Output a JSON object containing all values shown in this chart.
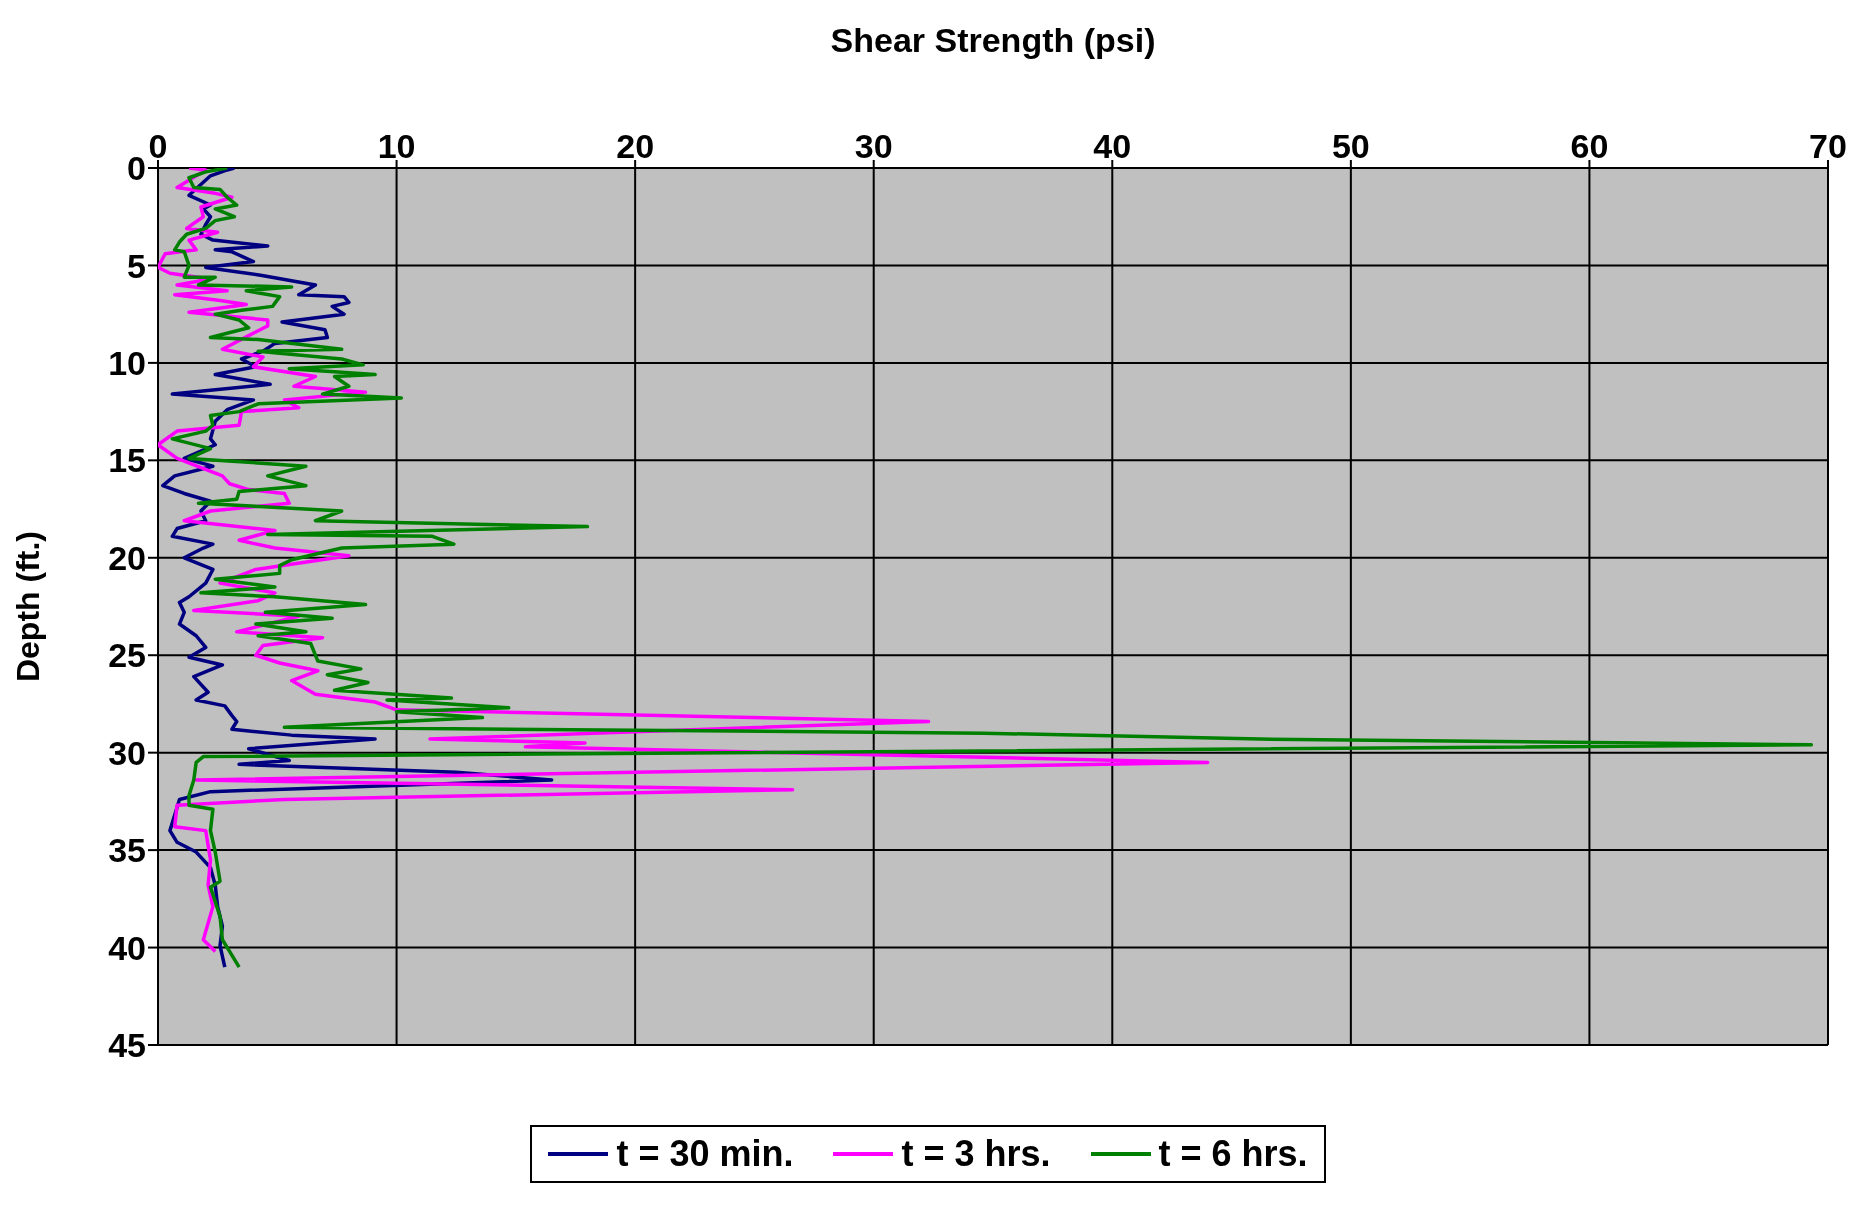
{
  "chart_data": {
    "type": "line",
    "xlabel": "Shear Strength (psi)",
    "ylabel": "Depth (ft.)",
    "xlim": [
      0,
      70
    ],
    "xticks": [
      0,
      10,
      20,
      30,
      40,
      50,
      60,
      70
    ],
    "ylim": [
      45,
      0
    ],
    "yticks": [
      0,
      5,
      10,
      15,
      20,
      25,
      30,
      35,
      40,
      45
    ],
    "grid": true,
    "legend": "bottom",
    "marker": "none",
    "line_style": "solid",
    "series": [
      {
        "name": "t = 30 min.",
        "color": "#000080",
        "x": [
          3.2,
          2.9,
          2.2,
          1.3,
          2.2,
          1.9,
          2.2,
          2.0,
          1.8,
          2.3,
          4.6,
          2.4,
          3.1,
          4.0,
          2.0,
          4.3,
          6.6,
          5.9,
          7.8,
          8.0,
          7.3,
          7.8,
          5.2,
          7.0,
          7.1,
          4.9,
          4.4,
          3.5,
          4.1,
          2.4,
          4.7,
          0.6,
          4.0,
          2.9,
          2.4,
          2.2,
          2.4,
          1.1,
          2.3,
          0.7,
          0.2,
          1.1,
          2.2,
          1.8,
          2.0,
          0.8,
          0.6,
          2.3,
          1.9,
          1.1,
          2.3,
          2.0,
          1.3,
          0.9,
          1.1,
          0.9,
          1.6,
          2.0,
          1.3,
          2.7,
          1.5,
          2.1,
          1.6,
          2.8,
          3.1,
          3.3,
          3.1,
          5.6,
          9.1,
          3.8,
          5.5,
          3.4,
          12.5,
          16.5,
          2.2,
          0.9,
          0.5,
          0.8,
          1.6,
          2.2,
          2.4,
          2.5,
          2.7,
          2.6,
          2.8
        ],
        "values": [
          0,
          0.1,
          0.4,
          1.4,
          1.9,
          2.1,
          2.5,
          2.9,
          3.4,
          3.7,
          4.0,
          4.2,
          4.3,
          4.8,
          5.1,
          5.5,
          6.0,
          6.5,
          6.6,
          6.9,
          7.1,
          7.5,
          7.9,
          8.3,
          8.7,
          9.0,
          9.4,
          9.8,
          10.2,
          10.6,
          11.1,
          11.6,
          11.9,
          12.4,
          13.0,
          13.9,
          14.2,
          14.9,
          15.3,
          15.8,
          16.3,
          16.7,
          17.1,
          17.6,
          18.1,
          18.5,
          18.9,
          19.3,
          19.5,
          20.0,
          20.6,
          21.3,
          22.0,
          22.3,
          22.8,
          23.4,
          24.0,
          24.6,
          25.1,
          25.5,
          26.1,
          26.9,
          27.3,
          27.6,
          28.1,
          28.4,
          28.8,
          29.1,
          29.3,
          29.8,
          30.4,
          30.6,
          31.0,
          31.4,
          32.0,
          32.4,
          34.0,
          34.6,
          35.1,
          35.9,
          36.8,
          37.9,
          38.9,
          39.9,
          41.0
        ]
      },
      {
        "name": "t = 3 hrs.",
        "color": "#ff00ff",
        "x": [
          1.3,
          2.0,
          0.8,
          2.4,
          3.1,
          1.8,
          1.9,
          1.2,
          2.5,
          1.3,
          1.6,
          0.3,
          0.0,
          0.5,
          2.2,
          0.8,
          2.9,
          0.7,
          2.6,
          3.7,
          1.3,
          4.6,
          4.6,
          3.8,
          2.7,
          4.4,
          4.0,
          6.6,
          5.7,
          8.7,
          5.3,
          5.9,
          3.5,
          3.4,
          0.8,
          0.0,
          0.8,
          2.7,
          3.0,
          3.8,
          5.3,
          5.5,
          2.2,
          1.1,
          4.9,
          3.4,
          4.9,
          8.0,
          4.1,
          2.6,
          4.9,
          4.2,
          1.5,
          5.9,
          3.3,
          6.9,
          4.4,
          4.1,
          5.1,
          6.7,
          5.6,
          6.6,
          9.1,
          10.0,
          32.3,
          11.4,
          17.9,
          15.4,
          44.0,
          1.6,
          26.6,
          5.3,
          0.8,
          0.7,
          2.0,
          2.2,
          2.1,
          2.3,
          1.9,
          2.4
        ],
        "values": [
          0,
          0.1,
          1.0,
          1.3,
          1.5,
          2.0,
          2.5,
          3.1,
          3.3,
          3.7,
          4.2,
          4.4,
          5.1,
          5.4,
          5.7,
          6.0,
          6.3,
          6.5,
          6.8,
          7.0,
          7.4,
          7.8,
          8.1,
          8.6,
          9.3,
          9.7,
          10.2,
          10.7,
          11.2,
          11.5,
          11.9,
          12.3,
          12.5,
          13.2,
          13.5,
          14.2,
          14.9,
          15.8,
          16.2,
          16.5,
          16.7,
          17.2,
          17.6,
          18.1,
          18.6,
          19.1,
          19.5,
          19.9,
          20.6,
          21.3,
          21.8,
          22.2,
          22.7,
          23.0,
          23.8,
          24.1,
          24.5,
          25.0,
          25.4,
          25.8,
          26.3,
          27.0,
          27.4,
          27.8,
          28.4,
          29.3,
          29.5,
          29.7,
          30.5,
          31.4,
          31.9,
          32.4,
          32.7,
          33.8,
          34.0,
          35.5,
          36.8,
          37.9,
          39.6,
          40.2
        ]
      },
      {
        "name": "t = 6 hrs.",
        "color": "#008000",
        "x": [
          2.9,
          2.0,
          1.3,
          1.5,
          2.6,
          2.9,
          3.3,
          2.4,
          3.2,
          2.4,
          2.0,
          1.2,
          0.9,
          0.7,
          1.1,
          1.3,
          1.1,
          2.4,
          1.7,
          5.6,
          3.7,
          5.1,
          4.8,
          3.5,
          2.4,
          3.4,
          3.8,
          2.2,
          4.2,
          7.7,
          4.2,
          7.7,
          8.6,
          5.5,
          9.1,
          7.4,
          8.0,
          6.9,
          10.2,
          4.2,
          3.4,
          2.2,
          2.3,
          2.0,
          0.6,
          2.2,
          1.3,
          6.2,
          4.6,
          6.2,
          3.4,
          3.3,
          1.7,
          7.7,
          6.6,
          18.0,
          4.6,
          11.5,
          12.4,
          7.7,
          5.6,
          5.1,
          5.1,
          2.4,
          4.9,
          1.8,
          4.9,
          8.7,
          4.5,
          7.3,
          4.1,
          6.2,
          4.2,
          6.4,
          6.7,
          8.5,
          7.1,
          8.8,
          7.4,
          12.3,
          9.6,
          14.7,
          10.0,
          13.6,
          5.3,
          34.6,
          46.2,
          69.3,
          1.9,
          1.6,
          1.5,
          1.3,
          1.3,
          2.3,
          2.2,
          2.4,
          2.6,
          2.2,
          2.6,
          2.7,
          3.0,
          3.4
        ],
        "values": [
          0,
          0.2,
          0.5,
          1.0,
          1.1,
          1.5,
          1.9,
          2.1,
          2.5,
          2.7,
          3.1,
          3.4,
          3.8,
          4.2,
          4.3,
          5.0,
          5.6,
          5.6,
          6.0,
          6.1,
          6.3,
          6.6,
          7.1,
          7.3,
          7.5,
          7.8,
          8.2,
          8.7,
          8.8,
          9.3,
          9.4,
          9.8,
          10.1,
          10.3,
          10.6,
          10.7,
          11.2,
          11.6,
          11.8,
          12.1,
          12.5,
          12.7,
          13.2,
          13.5,
          13.9,
          14.4,
          14.9,
          15.3,
          15.8,
          16.3,
          16.6,
          17.0,
          17.2,
          17.6,
          18.1,
          18.4,
          18.8,
          18.9,
          19.3,
          19.5,
          20.1,
          20.4,
          20.8,
          21.1,
          21.5,
          21.8,
          22.0,
          22.4,
          22.8,
          23.1,
          23.4,
          23.8,
          24.0,
          24.4,
          25.3,
          25.7,
          26.0,
          26.4,
          26.8,
          27.2,
          27.3,
          27.7,
          27.9,
          28.2,
          28.7,
          29.0,
          29.3,
          29.6,
          30.2,
          30.5,
          31.4,
          32.2,
          32.7,
          32.9,
          34.0,
          35.1,
          36.6,
          36.9,
          38.4,
          39.6,
          40.2,
          41.0
        ]
      }
    ]
  }
}
